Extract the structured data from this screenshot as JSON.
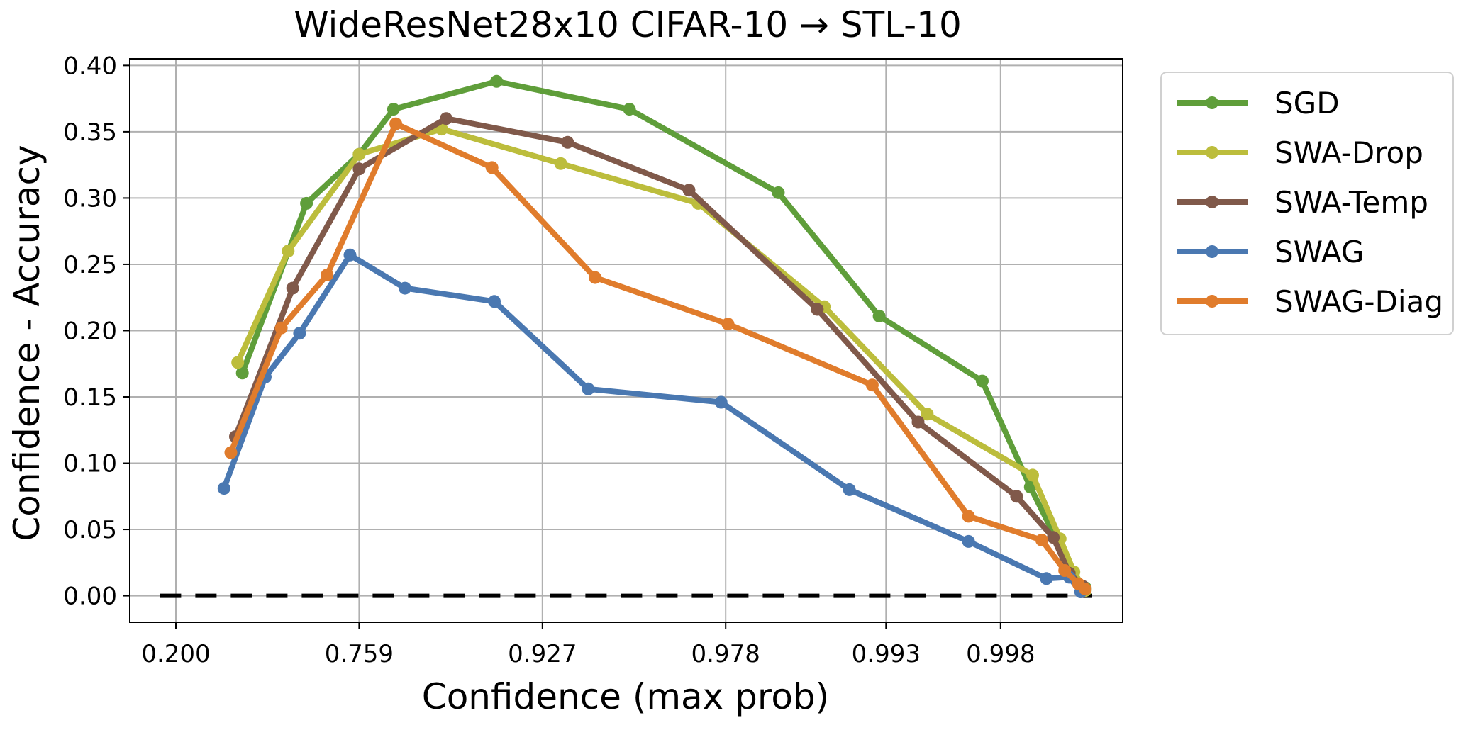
{
  "chart_data": {
    "type": "line",
    "title": "WideResNet28x10 CIFAR-10 → STL-10",
    "xlabel": "Confidence (max prob)",
    "ylabel": "Confidence - Accuracy",
    "x_scale": "quantile",
    "x_domain": [
      0,
      20
    ],
    "x_ticks": [
      {
        "pos": 0,
        "label": "0.200"
      },
      {
        "pos": 4,
        "label": "0.759"
      },
      {
        "pos": 8,
        "label": "0.927"
      },
      {
        "pos": 12,
        "label": "0.978"
      },
      {
        "pos": 15.5,
        "label": "0.993"
      },
      {
        "pos": 18,
        "label": "0.998"
      }
    ],
    "ylim": [
      -0.02,
      0.405
    ],
    "y_ticks": [
      0.0,
      0.05,
      0.1,
      0.15,
      0.2,
      0.25,
      0.3,
      0.35,
      0.4
    ],
    "y_tick_labels": [
      "0.00",
      "0.05",
      "0.10",
      "0.15",
      "0.20",
      "0.25",
      "0.30",
      "0.35",
      "0.40"
    ],
    "grid": true,
    "legend_position": "outside-right-top",
    "reference_line": {
      "y": 0.0,
      "style": "dashed",
      "color": "#000000",
      "x_range": [
        -0.35,
        20
      ]
    },
    "series": [
      {
        "name": "SGD",
        "color": "#5f9e3a",
        "x": [
          1.45,
          2.85,
          4.0,
          4.75,
          7.0,
          9.9,
          13.15,
          15.35,
          17.6,
          18.65,
          19.2,
          19.55,
          19.85
        ],
        "values": [
          0.168,
          0.296,
          0.333,
          0.367,
          0.388,
          0.367,
          0.304,
          0.211,
          0.162,
          0.082,
          0.044,
          0.018,
          0.006
        ]
      },
      {
        "name": "SWA-Drop",
        "color": "#bcbd3c",
        "x": [
          1.35,
          2.45,
          4.0,
          5.8,
          8.4,
          11.4,
          14.15,
          16.4,
          18.7,
          19.3,
          19.6,
          19.85
        ],
        "values": [
          0.176,
          0.26,
          0.333,
          0.352,
          0.326,
          0.296,
          0.218,
          0.137,
          0.091,
          0.043,
          0.018,
          0.004
        ]
      },
      {
        "name": "SWA-Temp",
        "color": "#80594a",
        "x": [
          1.3,
          2.55,
          4.0,
          5.9,
          8.55,
          11.2,
          14.0,
          16.2,
          18.35,
          19.15,
          19.5,
          19.8
        ],
        "values": [
          0.12,
          0.232,
          0.322,
          0.36,
          0.342,
          0.306,
          0.216,
          0.131,
          0.075,
          0.044,
          0.017,
          0.007
        ]
      },
      {
        "name": "SWAG",
        "color": "#4a78b1",
        "x": [
          1.05,
          1.95,
          2.7,
          3.8,
          5.0,
          6.95,
          9.0,
          11.9,
          14.7,
          17.3,
          19.0,
          19.5,
          19.75
        ],
        "values": [
          0.081,
          0.165,
          0.198,
          0.257,
          0.232,
          0.222,
          0.156,
          0.146,
          0.08,
          0.041,
          0.013,
          0.014,
          0.003
        ]
      },
      {
        "name": "SWAG-Diag",
        "color": "#e07c2c",
        "x": [
          1.2,
          2.3,
          3.3,
          4.8,
          6.9,
          9.15,
          12.05,
          15.2,
          17.3,
          18.9,
          19.4,
          19.7,
          19.85
        ],
        "values": [
          0.108,
          0.202,
          0.242,
          0.356,
          0.323,
          0.24,
          0.205,
          0.159,
          0.06,
          0.042,
          0.019,
          0.009,
          0.005
        ]
      }
    ]
  }
}
